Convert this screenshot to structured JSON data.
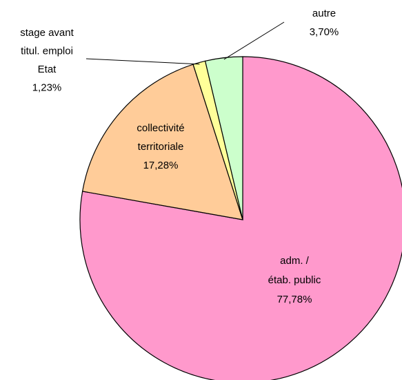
{
  "chart_data": {
    "type": "pie",
    "categories": [
      "adm. /\nétab. public",
      "collectivité\nterritoriale",
      "stage avant\ntitul. emploi\nEtat",
      "autre"
    ],
    "values": [
      77.78,
      17.28,
      1.23,
      3.7
    ],
    "value_labels": [
      "77,78%",
      "17,28%",
      "1,23%",
      "3,70%"
    ],
    "colors": [
      "#ff99cc",
      "#ffcc99",
      "#ffff99",
      "#ccffcc"
    ]
  }
}
